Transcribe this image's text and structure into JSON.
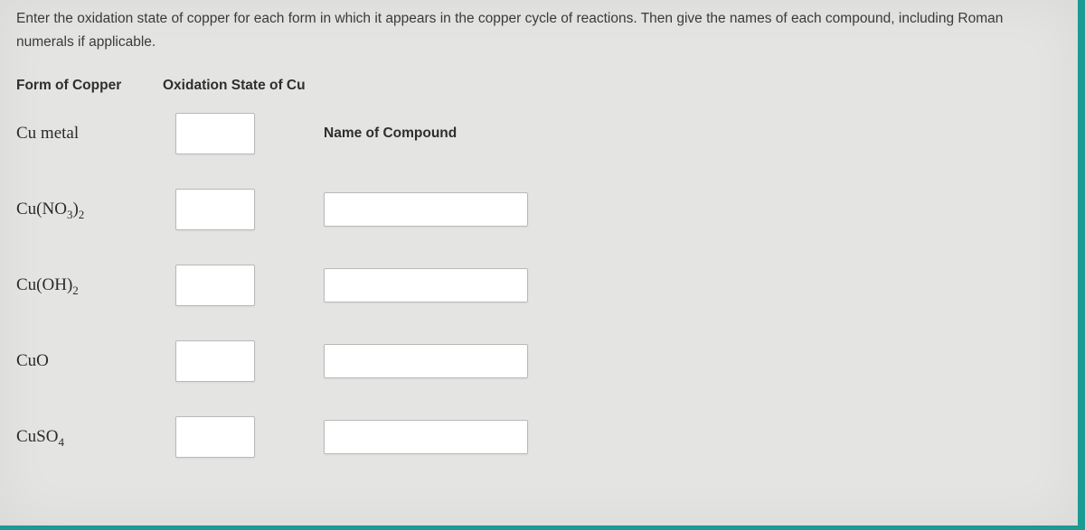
{
  "instructions": "Enter the oxidation state of copper for each form in which it appears in the copper cycle of reactions. Then give the names of each compound, including Roman numerals if applicable.",
  "headers": {
    "form": "Form of Copper",
    "oxidation": "Oxidation State of Cu",
    "name": "Name of Compound"
  },
  "rows": [
    {
      "label_html": "Cu metal",
      "ox_value": "",
      "name_value": "",
      "has_name_input": false
    },
    {
      "label_html": "Cu(NO<sub>3</sub>)<sub>2</sub>",
      "ox_value": "",
      "name_value": "",
      "has_name_input": true
    },
    {
      "label_html": "Cu(OH)<sub>2</sub>",
      "ox_value": "",
      "name_value": "",
      "has_name_input": true
    },
    {
      "label_html": "CuO",
      "ox_value": "",
      "name_value": "",
      "has_name_input": true
    },
    {
      "label_html": "CuSO<sub>4</sub>",
      "ox_value": "",
      "name_value": "",
      "has_name_input": true
    }
  ],
  "colors": {
    "page_bg": "#1a9b94",
    "panel_bg": "#e4e4e3",
    "text": "#333333",
    "input_border": "#b9b9b9",
    "input_bg": "#ffffff"
  }
}
